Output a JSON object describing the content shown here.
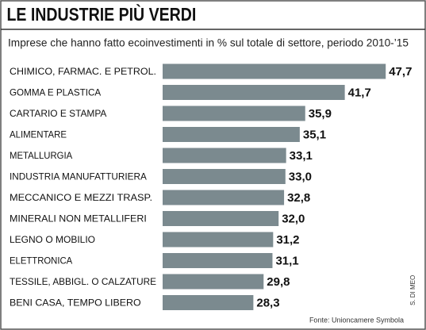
{
  "chart_data": {
    "type": "hbar",
    "title": "LE INDUSTRIE PIÙ VERDI",
    "subtitle": "Imprese che hanno fatto ecoinvestimenti in % sul totale di settore, periodo 2010-’15",
    "categories": [
      "CHIMICO, FARMAC. E PETROL.",
      "GOMMA E PLASTICA",
      "CARTARIO E STAMPA",
      "ALIMENTARE",
      "METALLURGIA",
      "INDUSTRIA MANUFATTURIERA",
      "MECCANICO E MEZZI  TRASP.",
      "MINERALI NON METALLIFERI",
      "LEGNO O MOBILIO",
      "ELETTRONICA",
      "TESSILE, ABBIGL. O CALZATURE",
      "BENI CASA, TEMPO LIBERO"
    ],
    "values": [
      47.7,
      41.7,
      35.9,
      35.1,
      33.1,
      33.0,
      32.8,
      32.0,
      31.2,
      31.1,
      29.8,
      28.3
    ],
    "value_labels": [
      "47,7",
      "41,7",
      "35,9",
      "35,1",
      "33,1",
      "33,0",
      "32,8",
      "32,0",
      "31,2",
      "31,1",
      "29,8",
      "28,3"
    ],
    "color": "#7b8a8f",
    "xlim": [
      15,
      50
    ],
    "source": "Fonte: Unioncamere Symbola",
    "credit": "S. DI MEO"
  }
}
